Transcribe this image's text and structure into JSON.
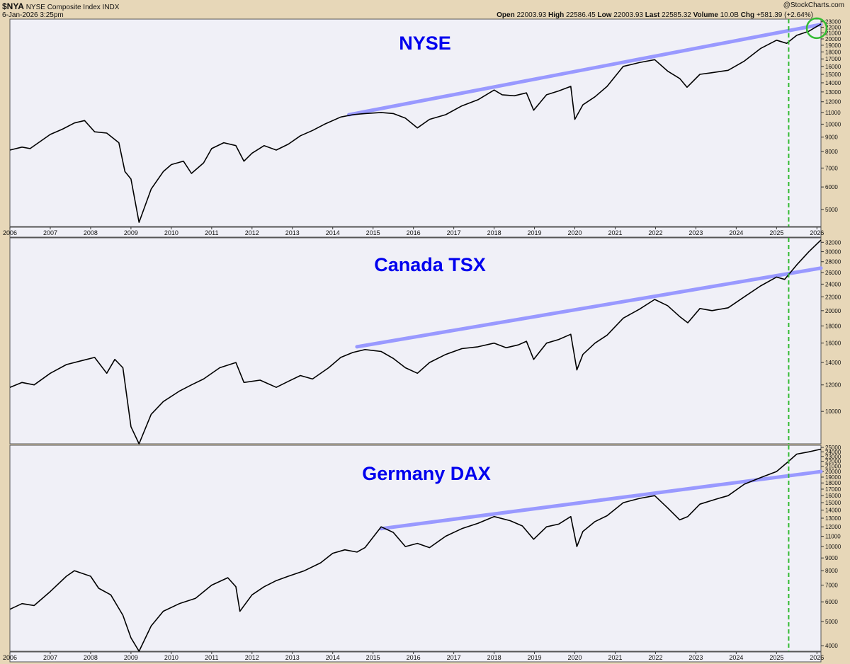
{
  "header": {
    "symbol": "$NYA",
    "name": "NYSE Composite Index",
    "exchange": "INDX",
    "timestamp": "6-Jan-2026 3:25pm",
    "open_label": "Open",
    "open": "22003.93",
    "high_label": "High",
    "high": "22586.45",
    "low_label": "Low",
    "low": "22003.93",
    "last_label": "Last",
    "last": "22585.32",
    "volume_label": "Volume",
    "volume": "10.0B",
    "chg_label": "Chg",
    "chg": "+581.39 (+2.64%)",
    "watermark": "@StockCharts.com"
  },
  "colors": {
    "background": "#e7d7b8",
    "panel": "#f0f0f7",
    "price_line": "#000000",
    "trendline": "#9999ff",
    "title": "#0000ee",
    "marker": "#33bb33"
  },
  "chart_data": [
    {
      "type": "line",
      "title": "NYSE",
      "y_scale": "log",
      "ylim": [
        4350,
        23500
      ],
      "x_ticks": [
        "2006",
        "2007",
        "2008",
        "2009",
        "2010",
        "2011",
        "2012",
        "2013",
        "2014",
        "2015",
        "2016",
        "2017",
        "2018",
        "2019",
        "2020",
        "2021",
        "2022",
        "2023",
        "2024",
        "2025",
        "2026"
      ],
      "y_ticks": [
        "5000",
        "6000",
        "7000",
        "8000",
        "9000",
        "10000",
        "11000",
        "12000",
        "13000",
        "14000",
        "15000",
        "16000",
        "17000",
        "18000",
        "19000",
        "20000",
        "21000",
        "22000",
        "23000"
      ],
      "series": [
        {
          "x": [
            2006,
            2006.3,
            2006.5,
            2007,
            2007.3,
            2007.6,
            2007.85,
            2008.1,
            2008.4,
            2008.7,
            2008.85,
            2009.0,
            2009.2,
            2009.5,
            2009.8,
            2010.0,
            2010.3,
            2010.5,
            2010.8,
            2011.0,
            2011.3,
            2011.6,
            2011.8,
            2012.0,
            2012.3,
            2012.6,
            2012.9,
            2013.2,
            2013.5,
            2013.8,
            2014.2,
            2014.5,
            2014.8,
            2015.2,
            2015.5,
            2015.8,
            2016.1,
            2016.4,
            2016.8,
            2017.2,
            2017.6,
            2018.0,
            2018.2,
            2018.5,
            2018.8,
            2018.98,
            2019.3,
            2019.6,
            2019.9,
            2020.0,
            2020.2,
            2020.5,
            2020.8,
            2021.2,
            2021.6,
            2021.98,
            2022.3,
            2022.6,
            2022.78,
            2023.1,
            2023.4,
            2023.8,
            2024.2,
            2024.6,
            2025.0,
            2025.25,
            2025.5,
            2025.8,
            2026.1
          ],
          "values": [
            8100,
            8300,
            8200,
            9200,
            9600,
            10100,
            10300,
            9400,
            9300,
            8600,
            6800,
            6400,
            4500,
            5900,
            6800,
            7200,
            7400,
            6700,
            7300,
            8200,
            8600,
            8400,
            7400,
            7900,
            8400,
            8100,
            8500,
            9100,
            9500,
            10000,
            10600,
            10800,
            10900,
            11000,
            10900,
            10500,
            9700,
            10400,
            10800,
            11600,
            12200,
            13200,
            12700,
            12600,
            12900,
            11200,
            12700,
            13100,
            13600,
            10400,
            11700,
            12500,
            13600,
            16000,
            16500,
            16900,
            15400,
            14500,
            13500,
            15000,
            15200,
            15500,
            16700,
            18500,
            19800,
            19300,
            20600,
            21300,
            22585
          ]
        }
      ],
      "trendline": {
        "x": [
          2014.4,
          2026.1
        ],
        "values": [
          10800,
          22500
        ]
      },
      "marker_x": 2025.3
    },
    {
      "type": "line",
      "title": "Canada TSX",
      "y_scale": "log",
      "ylim": [
        8000,
        33000
      ],
      "x_ticks": [],
      "y_ticks": [
        "10000",
        "12000",
        "14000",
        "16000",
        "18000",
        "20000",
        "22000",
        "24000",
        "26000",
        "28000",
        "30000",
        "32000"
      ],
      "series": [
        {
          "x": [
            2006,
            2006.3,
            2006.6,
            2007,
            2007.4,
            2007.8,
            2008.1,
            2008.4,
            2008.6,
            2008.8,
            2009.0,
            2009.2,
            2009.5,
            2009.8,
            2010.2,
            2010.5,
            2010.8,
            2011.2,
            2011.6,
            2011.8,
            2012.2,
            2012.6,
            2012.9,
            2013.2,
            2013.5,
            2013.9,
            2014.2,
            2014.5,
            2014.8,
            2015.2,
            2015.5,
            2015.8,
            2016.1,
            2016.4,
            2016.8,
            2017.2,
            2017.6,
            2018.0,
            2018.3,
            2018.6,
            2018.8,
            2018.98,
            2019.3,
            2019.6,
            2019.9,
            2020.05,
            2020.2,
            2020.5,
            2020.8,
            2021.2,
            2021.6,
            2021.98,
            2022.3,
            2022.6,
            2022.8,
            2023.1,
            2023.4,
            2023.8,
            2024.2,
            2024.6,
            2025.0,
            2025.2,
            2025.5,
            2025.8,
            2026.1
          ],
          "values": [
            11800,
            12200,
            12000,
            13000,
            13800,
            14200,
            14500,
            13000,
            14300,
            13500,
            9000,
            8000,
            9800,
            10700,
            11500,
            12000,
            12500,
            13500,
            14000,
            12200,
            12400,
            11800,
            12300,
            12800,
            12500,
            13500,
            14500,
            15000,
            15300,
            15100,
            14400,
            13500,
            13000,
            14000,
            14800,
            15400,
            15600,
            16000,
            15500,
            15800,
            16200,
            14300,
            16000,
            16400,
            17000,
            13300,
            14800,
            16000,
            16900,
            19000,
            20200,
            21600,
            20700,
            19200,
            18400,
            20300,
            20000,
            20400,
            22000,
            23700,
            25200,
            24800,
            27400,
            30000,
            32500
          ]
        }
      ],
      "trendline": {
        "x": [
          2014.6,
          2026.1
        ],
        "values": [
          15600,
          26800
        ]
      },
      "marker_x": 2025.3
    },
    {
      "type": "line",
      "title": "Germany DAX",
      "y_scale": "log",
      "ylim": [
        3800,
        25500
      ],
      "x_ticks": [
        "2006",
        "2007",
        "2008",
        "2009",
        "2010",
        "2011",
        "2012",
        "2013",
        "2014",
        "2015",
        "2016",
        "2017",
        "2018",
        "2019",
        "2020",
        "2021",
        "2022",
        "2023",
        "2024",
        "2025",
        "2026"
      ],
      "y_ticks": [
        "4000",
        "5000",
        "6000",
        "7000",
        "8000",
        "9000",
        "10000",
        "11000",
        "12000",
        "13000",
        "14000",
        "15000",
        "16000",
        "17000",
        "18000",
        "19000",
        "20000",
        "21000",
        "22000",
        "23000",
        "24000",
        "25000"
      ],
      "series": [
        {
          "x": [
            2006,
            2006.3,
            2006.6,
            2007,
            2007.4,
            2007.6,
            2008.0,
            2008.2,
            2008.5,
            2008.8,
            2009.0,
            2009.2,
            2009.5,
            2009.8,
            2010.2,
            2010.6,
            2011.0,
            2011.4,
            2011.6,
            2011.7,
            2012.0,
            2012.3,
            2012.6,
            2012.9,
            2013.3,
            2013.7,
            2014.0,
            2014.3,
            2014.6,
            2014.8,
            2015.2,
            2015.5,
            2015.8,
            2016.1,
            2016.4,
            2016.8,
            2017.2,
            2017.6,
            2018.0,
            2018.4,
            2018.7,
            2018.98,
            2019.3,
            2019.6,
            2019.9,
            2020.05,
            2020.2,
            2020.5,
            2020.8,
            2021.2,
            2021.6,
            2021.98,
            2022.3,
            2022.6,
            2022.8,
            2023.1,
            2023.5,
            2023.8,
            2024.2,
            2024.6,
            2025.0,
            2025.3,
            2025.5,
            2025.8,
            2026.1
          ],
          "values": [
            5600,
            5900,
            5800,
            6600,
            7600,
            8000,
            7600,
            6800,
            6400,
            5300,
            4300,
            3800,
            4800,
            5500,
            5900,
            6200,
            7000,
            7500,
            6900,
            5500,
            6400,
            6900,
            7300,
            7600,
            8000,
            8600,
            9400,
            9700,
            9500,
            9900,
            12000,
            11400,
            10000,
            10300,
            9900,
            11000,
            11800,
            12400,
            13200,
            12700,
            12100,
            10700,
            12000,
            12300,
            13200,
            10000,
            11500,
            12600,
            13300,
            15000,
            15600,
            16000,
            14300,
            12800,
            13200,
            14800,
            15500,
            16000,
            17800,
            18900,
            20000,
            22000,
            23500,
            24000,
            24600
          ]
        }
      ],
      "trendline": {
        "x": [
          2015.2,
          2026.1
        ],
        "values": [
          11800,
          20000
        ]
      },
      "marker_x": 2025.3
    }
  ]
}
